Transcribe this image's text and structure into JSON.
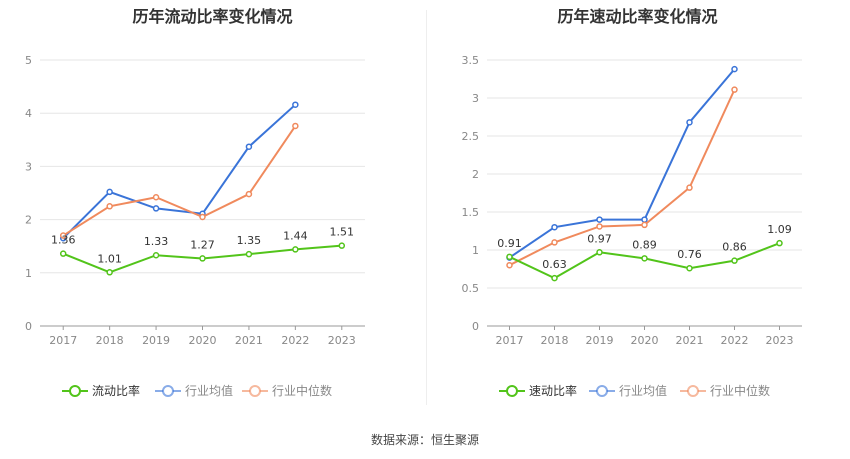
{
  "source_text": "数据来源：恒生聚源",
  "colors": {
    "ratio": "#52c41a",
    "industry_avg": "#3a74d8",
    "industry_median": "#f08a5d"
  },
  "chart_data": [
    {
      "type": "line",
      "title": "历年流动比率变化情况",
      "categories": [
        "2017",
        "2018",
        "2019",
        "2020",
        "2021",
        "2022",
        "2023"
      ],
      "ylim": [
        0,
        5
      ],
      "yticks": [
        0,
        1,
        2,
        3,
        4,
        5
      ],
      "grid": true,
      "legend_position": "bottom",
      "series": [
        {
          "name": "流动比率",
          "key": "ratio",
          "values": [
            1.36,
            1.01,
            1.33,
            1.27,
            1.35,
            1.44,
            1.51
          ],
          "labels": true
        },
        {
          "name": "行业均值",
          "key": "industry_avg",
          "values": [
            1.65,
            2.52,
            2.21,
            2.11,
            3.37,
            4.16,
            null
          ],
          "labels": false
        },
        {
          "name": "行业中位数",
          "key": "industry_median",
          "values": [
            1.7,
            2.25,
            2.42,
            2.05,
            2.48,
            3.76,
            null
          ],
          "labels": false
        }
      ]
    },
    {
      "type": "line",
      "title": "历年速动比率变化情况",
      "categories": [
        "2017",
        "2018",
        "2019",
        "2020",
        "2021",
        "2022",
        "2023"
      ],
      "ylim": [
        0,
        3.5
      ],
      "yticks": [
        0,
        0.5,
        1,
        1.5,
        2,
        2.5,
        3,
        3.5
      ],
      "grid": true,
      "legend_position": "bottom",
      "series": [
        {
          "name": "速动比率",
          "key": "ratio",
          "values": [
            0.91,
            0.63,
            0.97,
            0.89,
            0.76,
            0.86,
            1.09
          ],
          "labels": true
        },
        {
          "name": "行业均值",
          "key": "industry_avg",
          "values": [
            0.9,
            1.3,
            1.4,
            1.4,
            2.68,
            3.38,
            null
          ],
          "labels": false
        },
        {
          "name": "行业中位数",
          "key": "industry_median",
          "values": [
            0.8,
            1.1,
            1.31,
            1.33,
            1.82,
            3.11,
            null
          ],
          "labels": false
        }
      ]
    }
  ]
}
